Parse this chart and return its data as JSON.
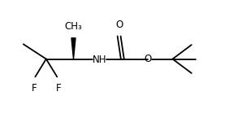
{
  "bg_color": "#ffffff",
  "line_color": "#000000",
  "line_width": 1.3,
  "font_size": 8.5,
  "fig_width": 2.82,
  "fig_height": 1.45,
  "dpi": 100,
  "xlim": [
    0,
    10
  ],
  "ylim": [
    0,
    5
  ]
}
